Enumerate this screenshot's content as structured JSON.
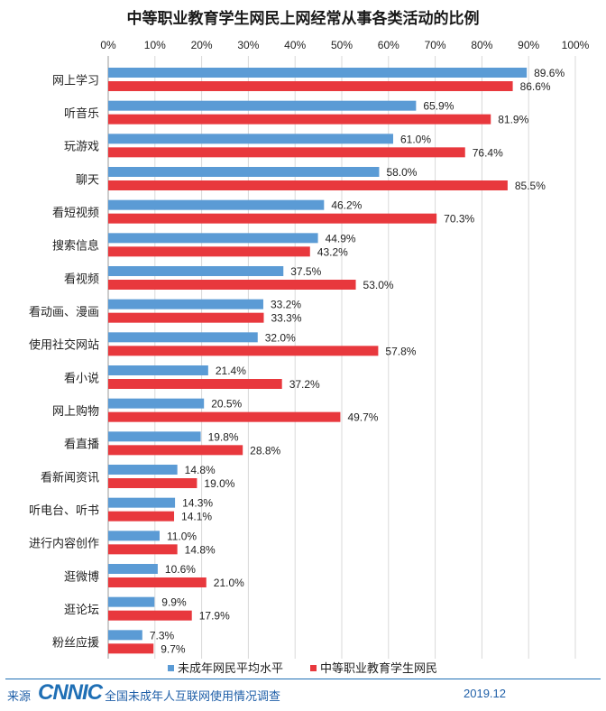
{
  "chart_data": {
    "type": "bar",
    "orientation": "horizontal",
    "title": "中等职业教育学生网民上网经常从事各类活动的比例",
    "xlim": [
      0,
      100
    ],
    "xticks": [
      "0%",
      "10%",
      "20%",
      "30%",
      "40%",
      "50%",
      "60%",
      "70%",
      "80%",
      "90%",
      "100%"
    ],
    "categories": [
      "网上学习",
      "听音乐",
      "玩游戏",
      "聊天",
      "看短视频",
      "搜索信息",
      "看视频",
      "看动画、漫画",
      "使用社交网站",
      "看小说",
      "网上购物",
      "看直播",
      "看新闻资讯",
      "听电台、听书",
      "进行内容创作",
      "逛微博",
      "逛论坛",
      "粉丝应援"
    ],
    "series": [
      {
        "name": "未成年网民平均水平",
        "color": "#5b9bd5",
        "values": [
          89.6,
          65.9,
          61.0,
          58.0,
          46.2,
          44.9,
          37.5,
          33.2,
          32.0,
          21.4,
          20.5,
          19.8,
          14.8,
          14.3,
          11.0,
          10.6,
          9.9,
          7.3
        ],
        "labels": [
          "89.6%",
          "65.9%",
          "61.0%",
          "58.0%",
          "46.2%",
          "44.9%",
          "37.5%",
          "33.2%",
          "32.0%",
          "21.4%",
          "20.5%",
          "19.8%",
          "14.8%",
          "14.3%",
          "11.0%",
          "10.6%",
          "9.9%",
          "7.3%"
        ]
      },
      {
        "name": "中等职业教育学生网民",
        "color": "#e8383d",
        "values": [
          86.6,
          81.9,
          76.4,
          85.5,
          70.3,
          43.2,
          53.0,
          33.3,
          57.8,
          37.2,
          49.7,
          28.8,
          19.0,
          14.1,
          14.8,
          21.0,
          17.9,
          9.7
        ],
        "labels": [
          "86.6%",
          "81.9%",
          "76.4%",
          "85.5%",
          "70.3%",
          "43.2%",
          "53.0%",
          "33.3%",
          "57.8%",
          "37.2%",
          "49.7%",
          "28.8%",
          "19.0%",
          "14.1%",
          "14.8%",
          "21.0%",
          "17.9%",
          "9.7%"
        ]
      }
    ],
    "legend_position": "bottom"
  },
  "footer": {
    "source_label": "来源",
    "logo_text": "CNNIC",
    "survey_name": "全国未成年人互联网使用情况调查",
    "date": "2019.12"
  }
}
